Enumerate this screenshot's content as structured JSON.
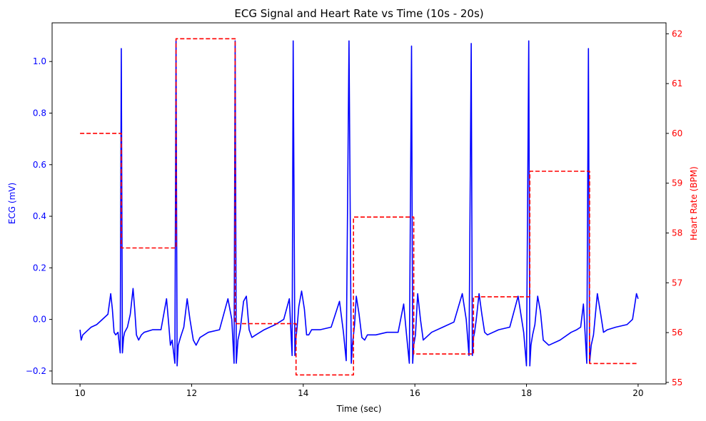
{
  "chart_data": {
    "type": "line",
    "title": "ECG Signal and Heart Rate vs Time (10s - 20s)",
    "xlabel": "Time (sec)",
    "ylabel_left": "ECG (mV)",
    "ylabel_right": "Heart Rate (BPM)",
    "xlim": [
      9.5,
      20.5
    ],
    "ylim_left": [
      -0.25,
      1.15
    ],
    "ylim_right": [
      54.97,
      62.22
    ],
    "x_ticks": [
      "10",
      "12",
      "14",
      "16",
      "18",
      "20"
    ],
    "y_left_ticks": [
      "−0.2",
      "0.0",
      "0.2",
      "0.4",
      "0.6",
      "0.8",
      "1.0"
    ],
    "y_right_ticks": [
      "55",
      "56",
      "57",
      "58",
      "59",
      "60",
      "61",
      "62"
    ],
    "grid": false,
    "colors": {
      "ecg": "#0000ff",
      "hr": "#ff0000",
      "axis": "#000000"
    },
    "series": [
      {
        "axis": "left",
        "style": "solid",
        "x": [
          10.0,
          10.02,
          10.05,
          10.1,
          10.2,
          10.3,
          10.4,
          10.5,
          10.55,
          10.58,
          10.61,
          10.64,
          10.68,
          10.72,
          10.74,
          10.76,
          10.78,
          10.8,
          10.85,
          10.9,
          10.95,
          10.98,
          11.01,
          11.05,
          11.1,
          11.15,
          11.3,
          11.45,
          11.55,
          11.59,
          11.62,
          11.65,
          11.7,
          11.72,
          11.74,
          11.76,
          11.8,
          11.86,
          11.92,
          11.97,
          12.03,
          12.08,
          12.15,
          12.3,
          12.5,
          12.65,
          12.72,
          12.76,
          12.78,
          12.8,
          12.83,
          12.87,
          12.93,
          12.98,
          13.03,
          13.08,
          13.15,
          13.3,
          13.5,
          13.65,
          13.75,
          13.8,
          13.82,
          13.85,
          13.87,
          13.89,
          13.92,
          13.97,
          14.02,
          14.06,
          14.1,
          14.15,
          14.3,
          14.5,
          14.65,
          14.72,
          14.77,
          14.82,
          14.86,
          14.88,
          14.9,
          14.92,
          14.95,
          15.0,
          15.05,
          15.1,
          15.15,
          15.3,
          15.5,
          15.7,
          15.8,
          15.85,
          15.9,
          15.94,
          15.96,
          15.98,
          16.01,
          16.05,
          16.1,
          16.15,
          16.2,
          16.3,
          16.5,
          16.7,
          16.85,
          16.92,
          16.97,
          17.01,
          17.03,
          17.05,
          17.07,
          17.1,
          17.15,
          17.2,
          17.25,
          17.3,
          17.5,
          17.7,
          17.85,
          17.95,
          18.0,
          18.04,
          18.06,
          18.08,
          18.11,
          18.15,
          18.2,
          18.25,
          18.3,
          18.4,
          18.6,
          18.8,
          18.9,
          18.97,
          19.02,
          19.08,
          19.11,
          19.13,
          19.16,
          19.2,
          19.27,
          19.33,
          19.38,
          19.45,
          19.6,
          19.8,
          19.9,
          19.97,
          20.0
        ],
        "values": [
          -0.04,
          -0.08,
          -0.06,
          -0.05,
          -0.03,
          -0.02,
          0.0,
          0.02,
          0.1,
          0.04,
          -0.05,
          -0.06,
          -0.05,
          -0.13,
          1.05,
          -0.13,
          -0.07,
          -0.05,
          -0.03,
          0.02,
          0.12,
          0.04,
          -0.06,
          -0.08,
          -0.06,
          -0.05,
          -0.04,
          -0.04,
          0.08,
          -0.02,
          -0.1,
          -0.08,
          -0.17,
          1.08,
          -0.18,
          -0.1,
          -0.07,
          -0.03,
          0.08,
          0.0,
          -0.08,
          -0.1,
          -0.07,
          -0.05,
          -0.04,
          0.08,
          0.0,
          -0.17,
          1.08,
          -0.17,
          -0.08,
          -0.04,
          0.07,
          0.09,
          -0.04,
          -0.07,
          -0.06,
          -0.04,
          -0.02,
          0.0,
          0.08,
          -0.14,
          1.08,
          -0.14,
          -0.07,
          -0.03,
          0.05,
          0.11,
          0.04,
          -0.06,
          -0.06,
          -0.04,
          -0.04,
          -0.03,
          0.07,
          -0.05,
          -0.16,
          1.08,
          -0.17,
          -0.1,
          -0.06,
          -0.02,
          0.09,
          0.02,
          -0.07,
          -0.08,
          -0.06,
          -0.06,
          -0.05,
          -0.05,
          0.06,
          -0.06,
          -0.17,
          1.06,
          -0.17,
          -0.1,
          -0.06,
          0.1,
          0.0,
          -0.08,
          -0.07,
          -0.05,
          -0.03,
          -0.01,
          0.1,
          0.0,
          -0.14,
          1.07,
          -0.14,
          -0.07,
          -0.05,
          0.0,
          0.1,
          0.02,
          -0.05,
          -0.06,
          -0.04,
          -0.03,
          0.09,
          -0.05,
          -0.18,
          1.08,
          -0.18,
          -0.1,
          -0.06,
          -0.02,
          0.09,
          0.03,
          -0.08,
          -0.1,
          -0.08,
          -0.05,
          -0.04,
          -0.03,
          0.06,
          -0.17,
          1.05,
          -0.17,
          -0.1,
          -0.06,
          0.1,
          0.02,
          -0.05,
          -0.04,
          -0.03,
          -0.02,
          0.0,
          0.1,
          0.08
        ]
      },
      {
        "axis": "right",
        "style": "dashed",
        "x": [
          10.0,
          10.74,
          10.74,
          11.72,
          11.72,
          12.78,
          12.78,
          13.87,
          13.87,
          14.9,
          14.9,
          15.98,
          15.98,
          17.05,
          17.05,
          18.06,
          18.06,
          19.13,
          19.13,
          20.0
        ],
        "values": [
          60.0,
          60.0,
          57.7,
          57.7,
          61.9,
          61.9,
          56.18,
          56.18,
          55.15,
          55.15,
          58.32,
          58.32,
          55.57,
          55.57,
          56.72,
          56.72,
          59.24,
          59.24,
          55.38,
          55.38
        ]
      }
    ]
  }
}
